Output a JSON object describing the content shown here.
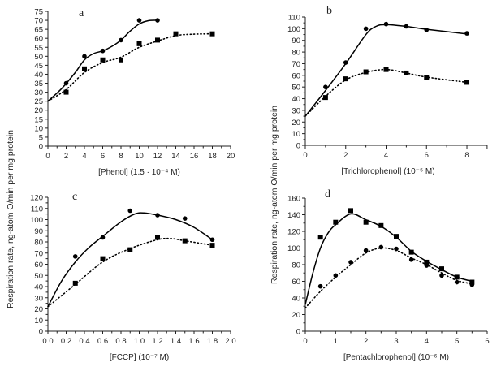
{
  "y_axis_label": "Respiration rate, ng-atom O/min per mg protein",
  "chart_data": [
    {
      "type": "line",
      "panel": "a",
      "xlabel": "[Phenol] (1.5 · 10⁻⁴ M)",
      "ylabel": "Respiration rate, ng-atom O/min per mg protein",
      "xlim": [
        0,
        20
      ],
      "ylim": [
        0,
        75
      ],
      "xticks": [
        0,
        2,
        4,
        6,
        8,
        10,
        12,
        14,
        16,
        18,
        20
      ],
      "yticks": [
        0,
        5,
        10,
        15,
        20,
        25,
        30,
        35,
        40,
        45,
        50,
        55,
        60,
        65,
        70,
        75
      ],
      "grid": false,
      "series": [
        {
          "marker": "circle",
          "line": "solid",
          "x": [
            2,
            4,
            6,
            8,
            10,
            12
          ],
          "y": [
            35,
            50,
            53,
            59,
            70,
            70
          ],
          "fit_x": [
            0,
            1.5,
            3,
            4,
            5,
            6,
            7,
            8,
            9,
            10,
            11,
            12
          ],
          "fit_y": [
            25,
            32,
            41,
            48,
            51.5,
            53,
            55.5,
            59,
            64,
            68,
            69.8,
            70
          ]
        },
        {
          "marker": "square",
          "line": "dotted",
          "x": [
            2,
            4,
            6,
            8,
            10,
            12,
            14,
            18
          ],
          "y": [
            30,
            43,
            48,
            48,
            57,
            59,
            62.5,
            62.5
          ],
          "fit_x": [
            0,
            2,
            4,
            6,
            8,
            10,
            12,
            14,
            16,
            18
          ],
          "fit_y": [
            25,
            31.5,
            41,
            46.5,
            49.5,
            55,
            58.5,
            61.5,
            62.3,
            62.5
          ]
        }
      ]
    },
    {
      "type": "line",
      "panel": "b",
      "xlabel": "[Trichlorophenol] (10⁻⁵ M)",
      "ylabel": "",
      "xlim": [
        0,
        9
      ],
      "ylim": [
        0,
        110
      ],
      "xticks": [
        0,
        2,
        4,
        6,
        8
      ],
      "yticks": [
        0,
        10,
        20,
        30,
        40,
        50,
        60,
        70,
        80,
        90,
        100,
        110
      ],
      "grid": false,
      "series": [
        {
          "marker": "circle",
          "line": "solid",
          "x": [
            1,
            2,
            3,
            4,
            5,
            6,
            8
          ],
          "y": [
            50,
            71,
            100,
            104,
            102,
            99,
            96
          ],
          "fit_x": [
            0,
            1,
            2,
            3,
            3.5,
            4,
            5,
            6,
            8
          ],
          "fit_y": [
            25,
            47,
            70,
            95,
            102,
            103.5,
            102,
            99.5,
            95.5
          ]
        },
        {
          "marker": "square",
          "line": "dotted",
          "x": [
            1,
            2,
            3,
            4,
            5,
            6,
            8
          ],
          "y": [
            41,
            57,
            63,
            65,
            62,
            58,
            54
          ],
          "fit_x": [
            0,
            1,
            2,
            3,
            4,
            5,
            6,
            8
          ],
          "fit_y": [
            25,
            42,
            56,
            62.5,
            65,
            62,
            58.5,
            54
          ]
        }
      ]
    },
    {
      "type": "line",
      "panel": "c",
      "xlabel": "[FCCP] (10⁻⁷ M)",
      "ylabel": "Respiration rate, ng-atom O/min per mg protein",
      "xlim": [
        0,
        2.0
      ],
      "ylim": [
        0,
        120
      ],
      "xticks": [
        "0.0",
        "0.2",
        "0.4",
        "0.6",
        "0.8",
        "1.0",
        "1.2",
        "1.4",
        "1.6",
        "1.8",
        "2.0"
      ],
      "yticks": [
        0,
        10,
        20,
        30,
        40,
        50,
        60,
        70,
        80,
        90,
        100,
        110,
        120
      ],
      "grid": false,
      "series": [
        {
          "marker": "circle",
          "line": "solid",
          "x": [
            0.3,
            0.6,
            0.9,
            1.2,
            1.5,
            1.8
          ],
          "y": [
            67,
            84,
            108,
            104,
            101,
            82
          ],
          "fit_x": [
            0,
            0.15,
            0.3,
            0.45,
            0.6,
            0.8,
            0.95,
            1.05,
            1.2,
            1.4,
            1.6,
            1.8
          ],
          "fit_y": [
            22,
            45,
            62,
            75,
            85,
            98,
            105,
            106,
            104,
            100,
            93,
            82
          ]
        },
        {
          "marker": "square",
          "line": "dotted",
          "x": [
            0.3,
            0.6,
            0.9,
            1.2,
            1.5,
            1.8
          ],
          "y": [
            43,
            65,
            73,
            84,
            81,
            77
          ],
          "fit_x": [
            0,
            0.3,
            0.6,
            0.9,
            1.2,
            1.35,
            1.5,
            1.8
          ],
          "fit_y": [
            22,
            42,
            62,
            74,
            82,
            83,
            81,
            77
          ]
        }
      ]
    },
    {
      "type": "line",
      "panel": "d",
      "xlabel": "[Pentachlorophenol] (10⁻⁶ M)",
      "ylabel": "Respiration rate, ng-atom O/min per mg protein",
      "xlim": [
        0,
        6
      ],
      "ylim": [
        0,
        160
      ],
      "xticks": [
        0,
        1,
        2,
        3,
        4,
        5,
        6
      ],
      "yticks": [
        0,
        20,
        40,
        60,
        80,
        100,
        120,
        140,
        160
      ],
      "grid": false,
      "series": [
        {
          "marker": "square",
          "line": "solid",
          "x": [
            0.5,
            1,
            1.5,
            2,
            2.5,
            3,
            3.5,
            4,
            4.5,
            5,
            5.5
          ],
          "y": [
            113,
            131,
            145,
            131,
            127,
            114,
            95,
            83,
            75,
            65,
            59
          ],
          "fit_x": [
            0,
            0.25,
            0.5,
            0.75,
            1,
            1.5,
            2,
            2.5,
            3,
            3.5,
            4,
            4.5,
            5,
            5.5
          ],
          "fit_y": [
            32,
            70,
            100,
            118,
            128,
            141,
            134,
            126,
            113,
            96,
            84,
            74,
            65,
            60
          ]
        },
        {
          "marker": "circle",
          "line": "dotted",
          "x": [
            0.5,
            1,
            1.5,
            2,
            2.5,
            3,
            3.5,
            4,
            4.5,
            5,
            5.5
          ],
          "y": [
            54,
            67,
            83,
            97,
            101,
            99,
            86,
            79,
            67,
            59,
            56
          ],
          "fit_x": [
            0,
            0.5,
            1,
            1.5,
            2,
            2.5,
            3,
            3.5,
            4,
            4.5,
            5,
            5.5
          ],
          "fit_y": [
            28,
            48,
            65,
            80,
            94,
            100,
            97,
            88,
            80,
            70,
            61,
            57
          ]
        }
      ]
    }
  ]
}
